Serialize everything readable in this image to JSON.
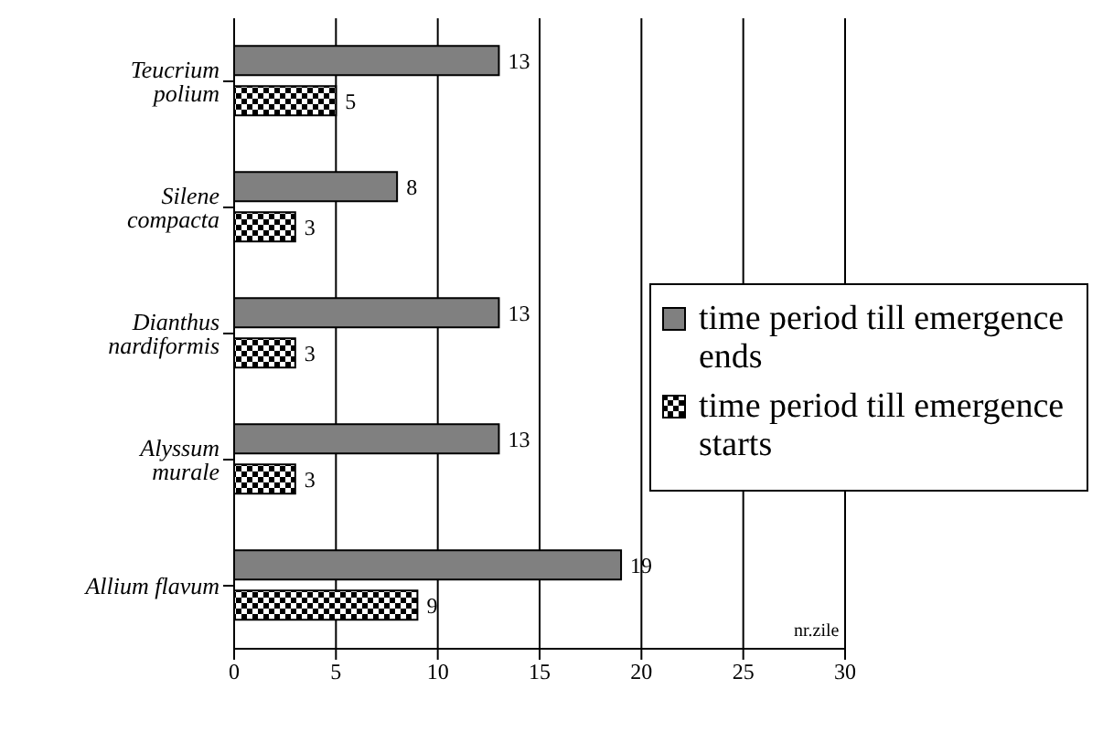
{
  "chart_data": {
    "type": "bar",
    "orientation": "horizontal",
    "categories": [
      "Teucrium polium",
      "Silene compacta",
      "Dianthus nardiformis",
      "Alyssum murale",
      "Allium flavum"
    ],
    "series": [
      {
        "name": "time period till emergence ends",
        "color": "#808080",
        "values": [
          13,
          8,
          13,
          13,
          19
        ]
      },
      {
        "name": "time period till emergence starts",
        "color": "#000000",
        "values": [
          5,
          3,
          3,
          3,
          9
        ]
      }
    ],
    "xlim": [
      0,
      30
    ],
    "xticks": [
      0,
      5,
      10,
      15,
      20,
      25,
      30
    ],
    "xlabel": "nr.zile",
    "grid": "x",
    "legend": "right",
    "data_labels": true
  }
}
